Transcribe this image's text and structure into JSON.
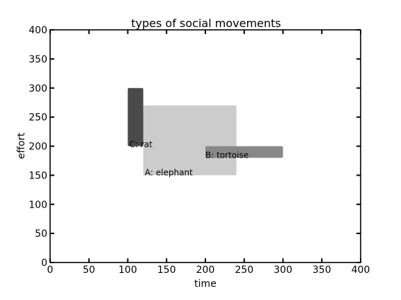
{
  "chart_data": {
    "type": "area",
    "title": "types of social movements",
    "xlabel": "time",
    "ylabel": "effort",
    "xlim": [
      0,
      400
    ],
    "ylim": [
      0,
      400
    ],
    "x_ticks": [
      0,
      50,
      100,
      150,
      200,
      250,
      300,
      350,
      400
    ],
    "y_ticks": [
      0,
      50,
      100,
      150,
      200,
      250,
      300,
      350,
      400
    ],
    "grid": false,
    "regions": [
      {
        "label": "A: elephant",
        "color": "#cccccc",
        "x_start": 120,
        "x_end": 240,
        "y_bottom": 150,
        "y_top": 270,
        "label_pos": [
          122,
          150
        ]
      },
      {
        "label": "B: tortoise",
        "color": "#888888",
        "x_start": 200,
        "x_end": 300,
        "y_bottom": 180,
        "y_top": 200,
        "label_pos": [
          200,
          180
        ]
      },
      {
        "label": "C: rat",
        "color": "#4a4a4a",
        "x_start": 100,
        "x_end": 120,
        "y_bottom": 200,
        "y_top": 300,
        "label_pos": [
          102,
          198
        ]
      }
    ]
  }
}
